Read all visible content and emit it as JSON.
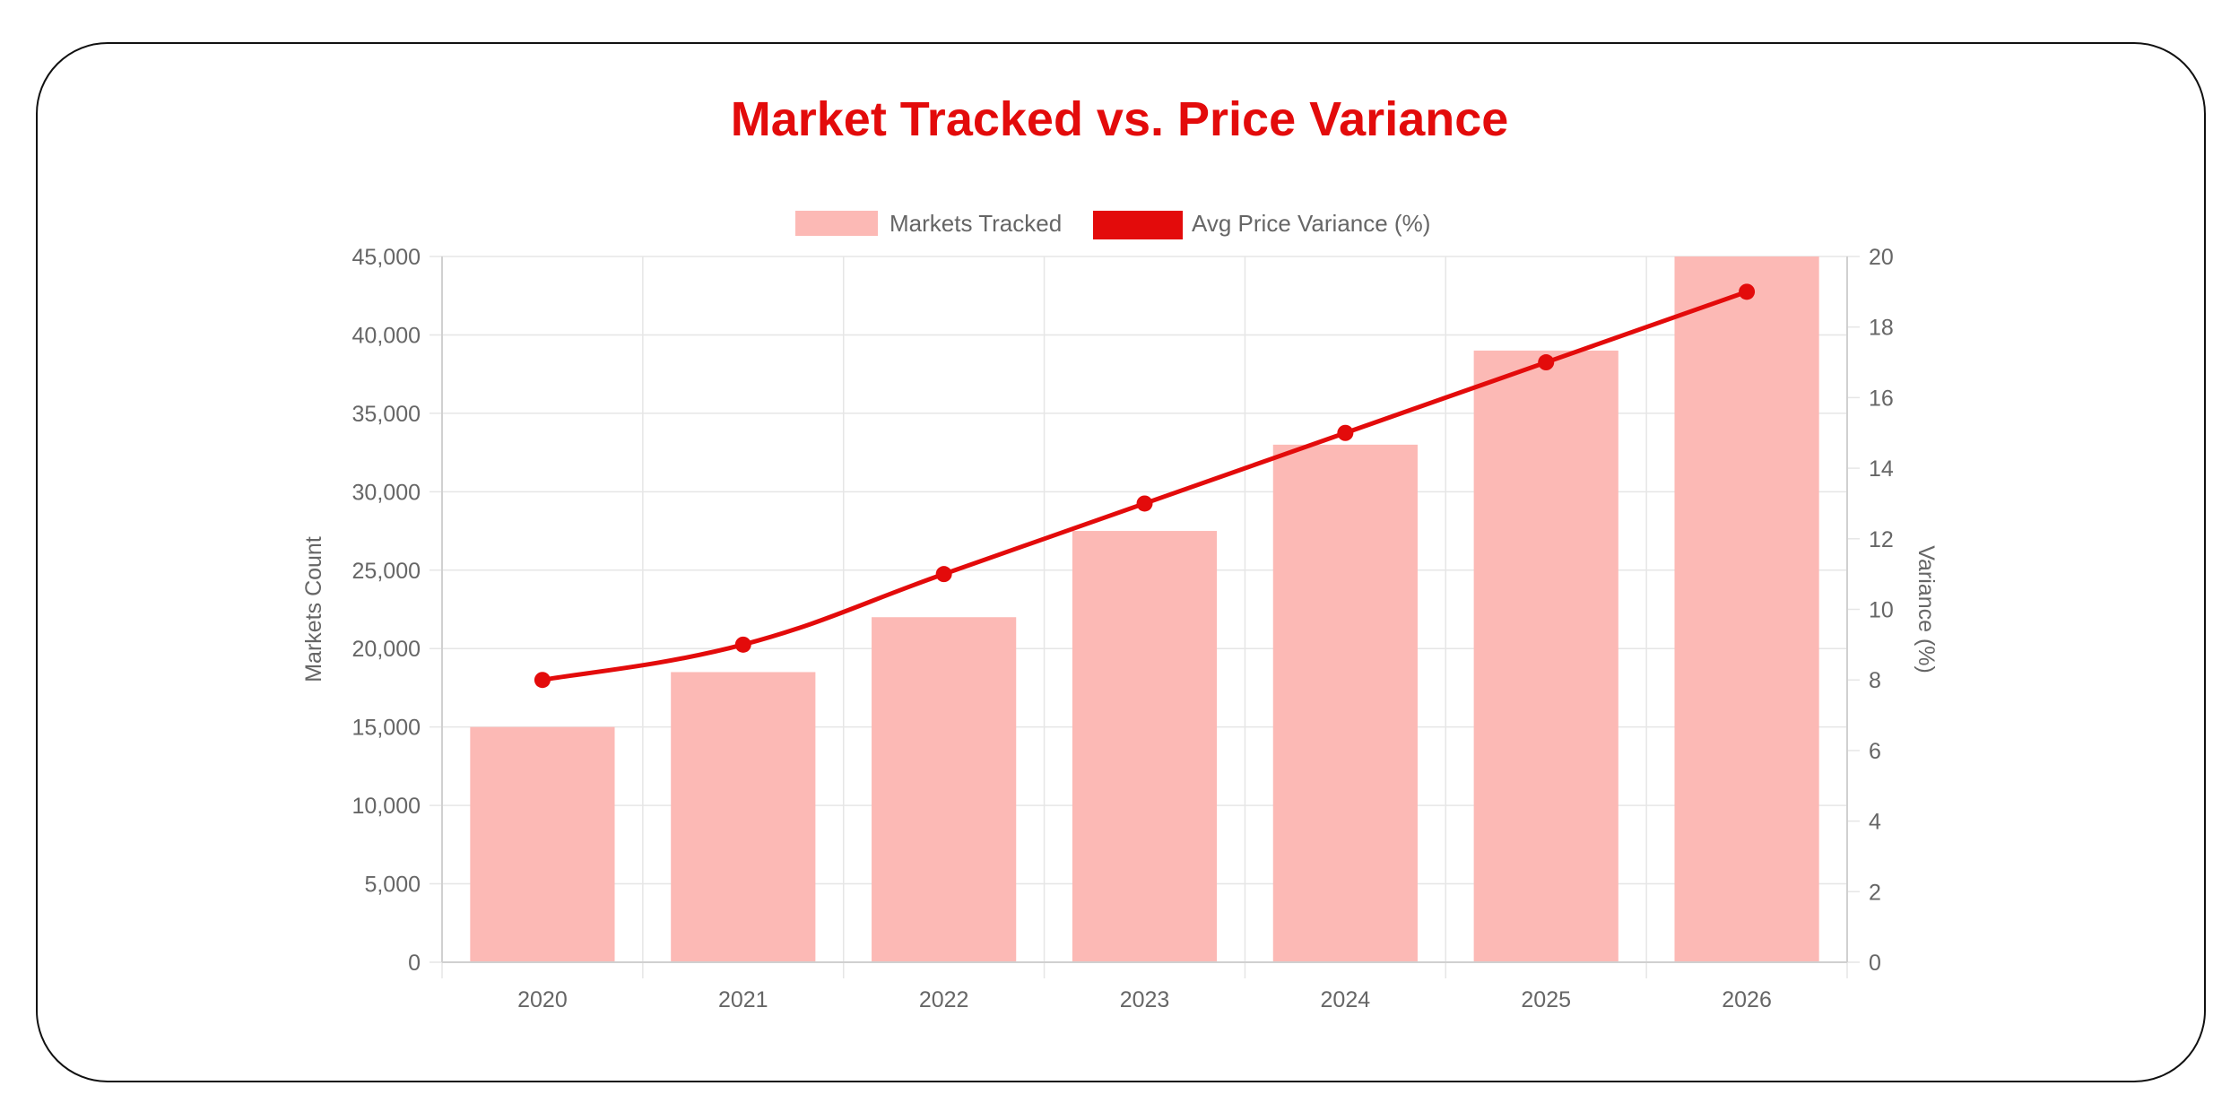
{
  "chart_data": {
    "type": "bar",
    "title": "Market Tracked vs. Price Variance",
    "categories": [
      "2020",
      "2021",
      "2022",
      "2023",
      "2024",
      "2025",
      "2026"
    ],
    "series": [
      {
        "name": "Markets Tracked",
        "type": "bar",
        "axis": "left",
        "color": "#fcb9b5",
        "values": [
          15000,
          18500,
          22000,
          27500,
          33000,
          39000,
          45000
        ]
      },
      {
        "name": "Avg Price Variance (%)",
        "type": "line",
        "axis": "right",
        "color": "#e30b0b",
        "values": [
          8,
          9,
          11,
          13,
          15,
          17,
          19
        ]
      }
    ],
    "ylabel": "Markets Count",
    "y2label": "Variance (%)",
    "ylim": [
      0,
      45000
    ],
    "y2lim": [
      0,
      20
    ],
    "yticks": [
      "0",
      "5,000",
      "10,000",
      "15,000",
      "20,000",
      "25,000",
      "30,000",
      "35,000",
      "40,000",
      "45,000"
    ],
    "y2ticks": [
      "0",
      "2",
      "4",
      "6",
      "8",
      "10",
      "12",
      "14",
      "16",
      "18",
      "20"
    ],
    "grid": true,
    "legend_position": "top"
  }
}
